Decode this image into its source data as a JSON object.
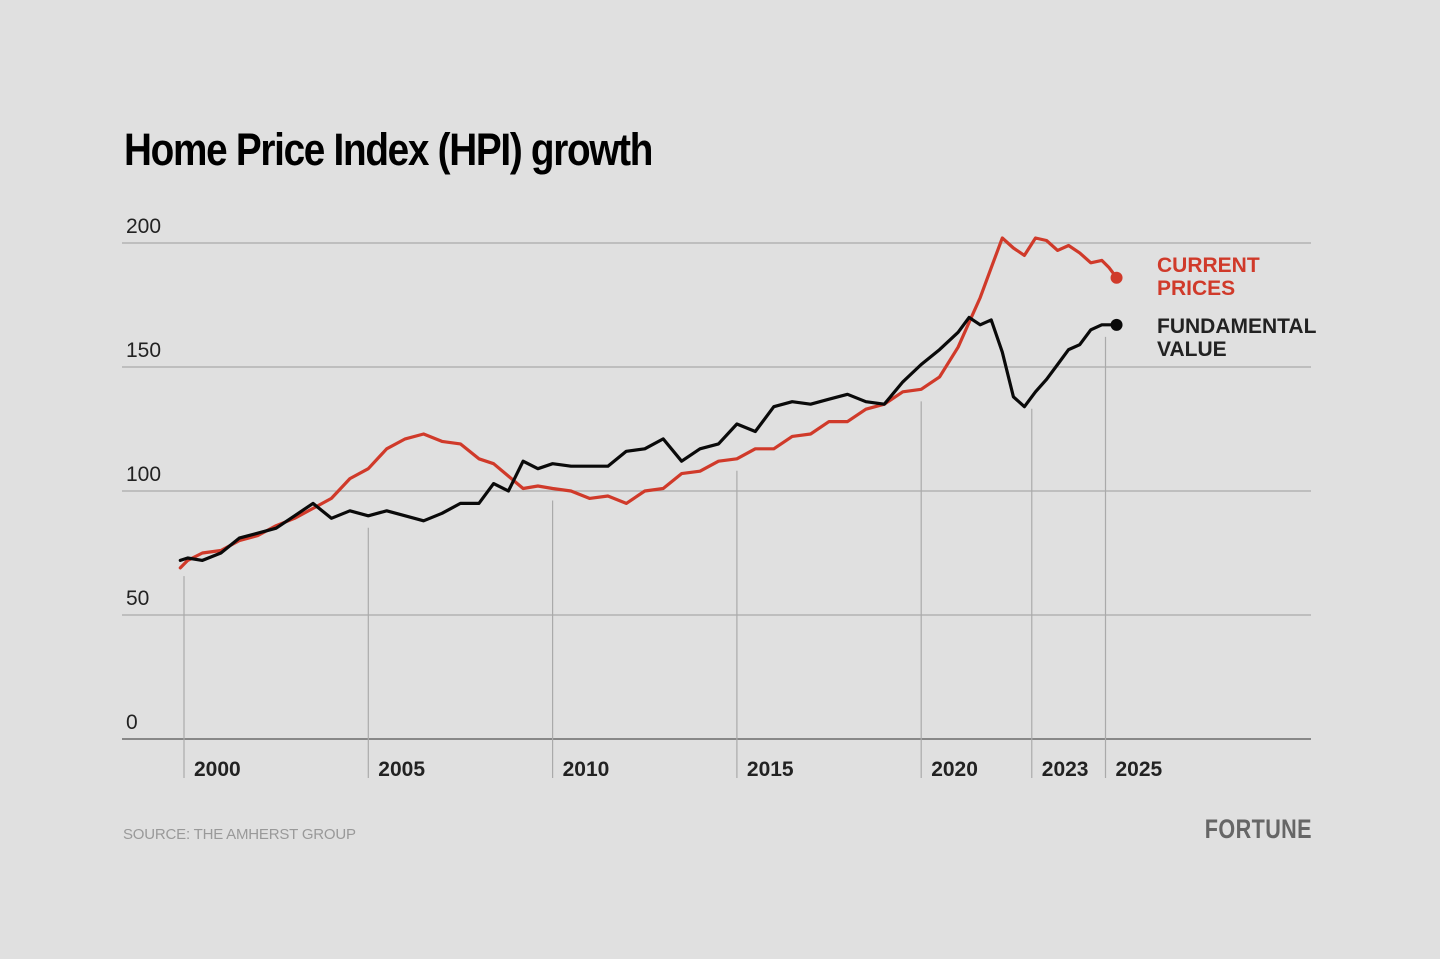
{
  "chart_data": {
    "type": "line",
    "title": "Home Price Index (HPI) growth",
    "xlabel": "",
    "ylabel": "",
    "ylim": [
      0,
      200
    ],
    "xlim": [
      2000,
      2025
    ],
    "yticks": [
      0,
      50,
      100,
      150,
      200
    ],
    "ytick_labels": [
      "0",
      "50",
      "100",
      "150",
      "200"
    ],
    "xticks": [
      2000,
      2005,
      2010,
      2015,
      2020,
      2023,
      2025
    ],
    "xtick_labels": [
      "2000",
      "2005",
      "2010",
      "2015",
      "2020",
      "2023",
      "2025"
    ],
    "grid": "horizontal",
    "legend": "inline-right",
    "series": [
      {
        "name": "Current prices",
        "label_lines": [
          "CURRENT",
          "PRICES"
        ],
        "color": "#d03a2a",
        "x": [
          1999.9,
          2000.1,
          2000.5,
          2001,
          2001.5,
          2002,
          2002.5,
          2003,
          2003.5,
          2004,
          2004.5,
          2005,
          2005.5,
          2006,
          2006.5,
          2007,
          2007.5,
          2008,
          2008.4,
          2008.8,
          2009.2,
          2009.6,
          2010,
          2010.5,
          2011,
          2011.5,
          2012,
          2012.5,
          2013,
          2013.5,
          2014,
          2014.5,
          2015,
          2015.5,
          2016,
          2016.5,
          2017,
          2017.5,
          2018,
          2018.5,
          2019,
          2019.5,
          2020,
          2020.5,
          2021,
          2021.3,
          2021.6,
          2021.9,
          2022.2,
          2022.5,
          2022.8,
          2023.1,
          2023.4,
          2023.7,
          2024,
          2024.3,
          2024.6,
          2024.9,
          2025.1,
          2025.3
        ],
        "values": [
          69,
          72,
          75,
          76,
          80,
          82,
          86,
          89,
          93,
          97,
          105,
          109,
          117,
          121,
          123,
          120,
          119,
          113,
          111,
          106,
          101,
          102,
          101,
          100,
          97,
          98,
          95,
          100,
          101,
          107,
          108,
          112,
          113,
          117,
          117,
          122,
          123,
          128,
          128,
          133,
          135,
          140,
          141,
          146,
          158,
          168,
          178,
          190,
          202,
          198,
          195,
          202,
          201,
          197,
          199,
          196,
          192,
          193,
          190,
          186
        ]
      },
      {
        "name": "Fundamental value",
        "label_lines": [
          "FUNDAMENTAL",
          "VALUE"
        ],
        "color": "#0a0a0a",
        "x": [
          1999.9,
          2000.1,
          2000.5,
          2001,
          2001.5,
          2002,
          2002.5,
          2003,
          2003.5,
          2004,
          2004.5,
          2005,
          2005.5,
          2006,
          2006.5,
          2007,
          2007.5,
          2008,
          2008.4,
          2008.8,
          2009.2,
          2009.6,
          2010,
          2010.5,
          2011,
          2011.5,
          2012,
          2012.5,
          2013,
          2013.5,
          2014,
          2014.5,
          2015,
          2015.5,
          2016,
          2016.5,
          2017,
          2017.5,
          2018,
          2018.5,
          2019,
          2019.5,
          2020,
          2020.5,
          2021,
          2021.3,
          2021.6,
          2021.9,
          2022.2,
          2022.5,
          2022.8,
          2023.1,
          2023.4,
          2023.7,
          2024,
          2024.3,
          2024.6,
          2024.9,
          2025.1,
          2025.3
        ],
        "values": [
          72,
          73,
          72,
          75,
          81,
          83,
          85,
          90,
          95,
          89,
          92,
          90,
          92,
          90,
          88,
          91,
          95,
          95,
          103,
          100,
          112,
          109,
          111,
          110,
          110,
          110,
          116,
          117,
          121,
          112,
          117,
          119,
          127,
          124,
          134,
          136,
          135,
          137,
          139,
          136,
          135,
          144,
          151,
          157,
          164,
          170,
          167,
          169,
          156,
          138,
          134,
          140,
          145,
          151,
          157,
          159,
          165,
          167,
          167,
          167
        ]
      }
    ]
  },
  "footer": {
    "source": "SOURCE: THE AMHERST GROUP",
    "brand": "FORTUNE"
  }
}
